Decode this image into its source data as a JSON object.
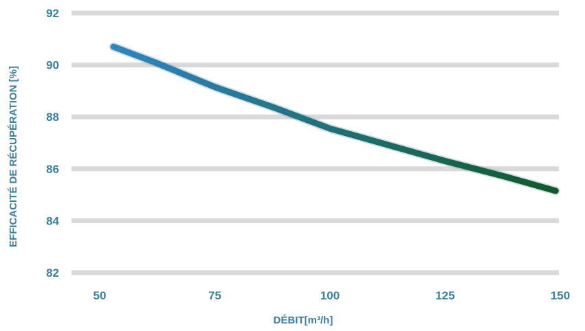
{
  "chart_data": {
    "type": "line",
    "title": "",
    "xlabel": "DÉBIT[m³/h]",
    "ylabel": "EFFICACITÉ DE RÉCUPÉRATION [%]",
    "xlim": [
      50,
      150
    ],
    "ylim": [
      82,
      92
    ],
    "x_ticks": [
      "50",
      "75",
      "100",
      "125",
      "150"
    ],
    "y_ticks": [
      "82",
      "84",
      "86",
      "88",
      "90",
      "92"
    ],
    "grid": true,
    "series": [
      {
        "x": [
          53,
          62,
          75,
          88,
          100,
          112,
          125,
          138,
          149
        ],
        "y": [
          90.7,
          90.1,
          89.15,
          88.35,
          87.55,
          86.95,
          86.3,
          85.7,
          85.15
        ]
      }
    ],
    "colors": {
      "label": "#3a7f9e",
      "line_start": "#2e86c1",
      "line_end": "#0f5a2c",
      "grid": "#d9d9d9"
    }
  }
}
